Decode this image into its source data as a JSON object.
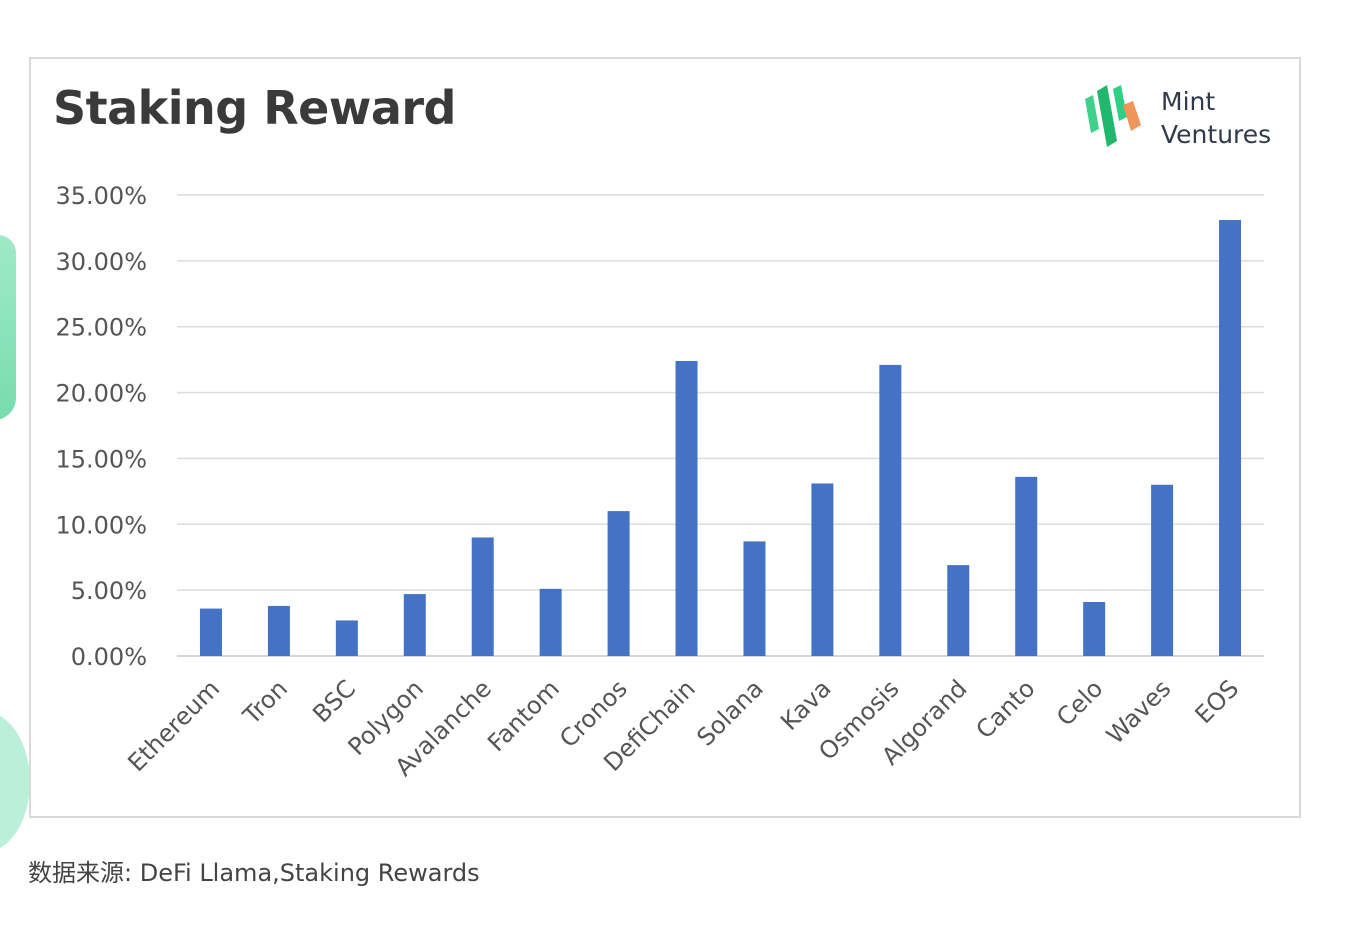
{
  "brand": {
    "line1": "Mint",
    "line2": "Ventures"
  },
  "chart_data": {
    "type": "bar",
    "title": "Staking Reward",
    "xlabel": "",
    "ylabel": "",
    "ylim": [
      0,
      35
    ],
    "y_ticks": [
      0,
      5,
      10,
      15,
      20,
      25,
      30,
      35
    ],
    "y_tick_labels": [
      "0.00%",
      "5.00%",
      "10.00%",
      "15.00%",
      "20.00%",
      "25.00%",
      "30.00%",
      "35.00%"
    ],
    "grid": true,
    "legend": "none",
    "bar_color": "#4472c4",
    "categories": [
      "Ethereum",
      "Tron",
      "BSC",
      "Polygon",
      "Avalanche",
      "Fantom",
      "Cronos",
      "DefiChain",
      "Solana",
      "Kava",
      "Osmosis",
      "Algorand",
      "Canto",
      "Celo",
      "Waves",
      "EOS"
    ],
    "values": [
      3.6,
      3.8,
      2.7,
      4.7,
      9.0,
      5.1,
      11.0,
      22.4,
      8.7,
      13.1,
      22.1,
      6.9,
      13.6,
      4.1,
      13.0,
      33.1
    ]
  },
  "source": "数据来源: DeFi Llama,Staking Rewards"
}
